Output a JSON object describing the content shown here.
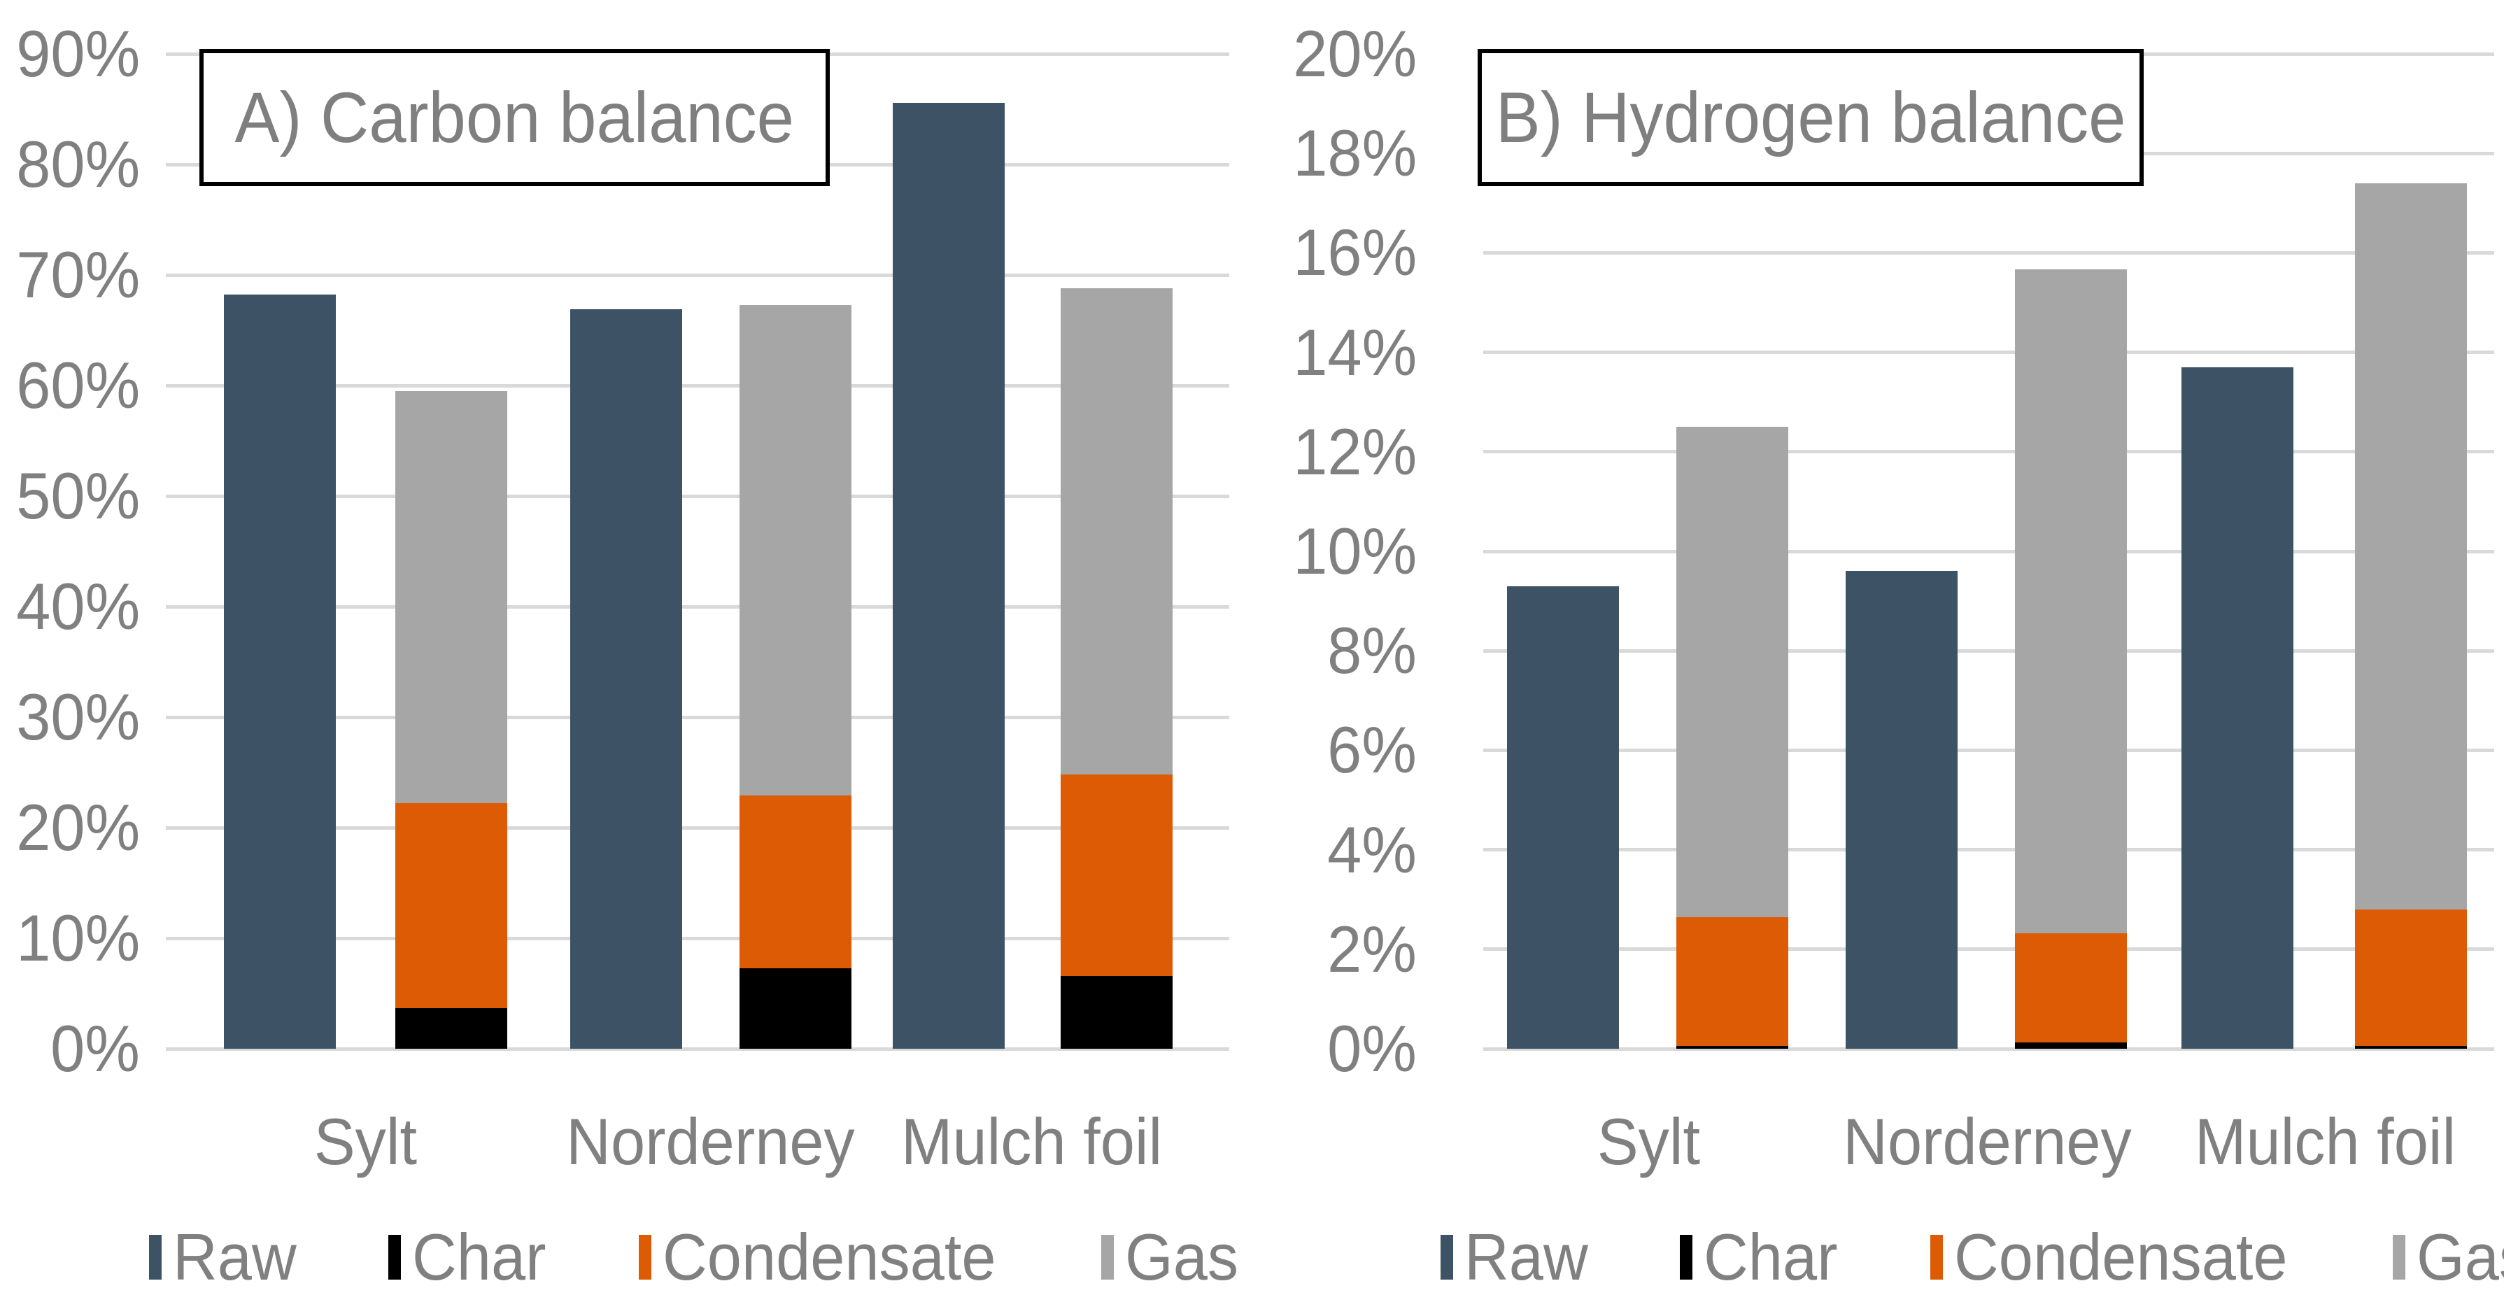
{
  "figure": {
    "background": "#FFFFFF",
    "text_color": "#808080",
    "title_text_color": "#7F7F7F",
    "gridline_color": "#D9D9D9",
    "title_border_color": "#000000"
  },
  "legend": {
    "items": [
      {
        "label": "Raw",
        "color": "#3E5266"
      },
      {
        "label": "Char",
        "color": "#000000"
      },
      {
        "label": "Condensate",
        "color": "#DC5B04"
      },
      {
        "label": "Gas",
        "color": "#A6A6A6"
      }
    ]
  },
  "chart_data": [
    {
      "id": "carbon",
      "type": "bar",
      "title": "A) Carbon balance",
      "categories": [
        "Sylt",
        "Norderney",
        "Mulch foil"
      ],
      "ylim": [
        0,
        90
      ],
      "ytick_step": 10,
      "ytick_labels": [
        "0%",
        "10%",
        "20%",
        "30%",
        "40%",
        "50%",
        "60%",
        "70%",
        "80%",
        "90%"
      ],
      "grid": true,
      "legend_position": "bottom",
      "bar_arrangement": "per category: one solo Raw bar + one stacked bar (Char bottom, Condensate middle, Gas top)",
      "series": [
        {
          "name": "Raw",
          "role": "solo",
          "color": "#3E5266",
          "values": [
            68.2,
            66.9,
            85.6
          ]
        },
        {
          "name": "Char",
          "role": "stacked",
          "color": "#000000",
          "values": [
            3.7,
            7.3,
            6.6
          ]
        },
        {
          "name": "Condensate",
          "role": "stacked",
          "color": "#DC5B04",
          "values": [
            18.5,
            15.6,
            18.2
          ]
        },
        {
          "name": "Gas",
          "role": "stacked",
          "color": "#A6A6A6",
          "values": [
            37.3,
            44.4,
            44.0
          ]
        }
      ],
      "stack_tops_pct": {
        "char": [
          3.7,
          7.3,
          6.6
        ],
        "condensate": [
          22.2,
          22.9,
          24.8
        ],
        "gas": [
          59.5,
          67.3,
          68.8
        ]
      }
    },
    {
      "id": "hydrogen",
      "type": "bar",
      "title": "B) Hydrogen balance",
      "categories": [
        "Sylt",
        "Norderney",
        "Mulch foil"
      ],
      "ylim": [
        0,
        20
      ],
      "ytick_step": 2,
      "ytick_labels": [
        "0%",
        "2%",
        "4%",
        "6%",
        "8%",
        "10%",
        "12%",
        "14%",
        "16%",
        "18%",
        "20%"
      ],
      "grid": true,
      "legend_position": "bottom",
      "bar_arrangement": "per category: one solo Raw bar + one stacked bar (Char bottom, Condensate middle, Gas top)",
      "series": [
        {
          "name": "Raw",
          "role": "solo",
          "color": "#3E5266",
          "values": [
            9.3,
            9.6,
            13.7
          ]
        },
        {
          "name": "Char",
          "role": "stacked",
          "color": "#000000",
          "values": [
            0.05,
            0.12,
            0.05
          ]
        },
        {
          "name": "Condensate",
          "role": "stacked",
          "color": "#DC5B04",
          "values": [
            2.6,
            2.2,
            2.75
          ]
        },
        {
          "name": "Gas",
          "role": "stacked",
          "color": "#A6A6A6",
          "values": [
            9.85,
            13.35,
            14.6
          ]
        }
      ],
      "stack_tops_pct": {
        "char": [
          0.05,
          0.12,
          0.05
        ],
        "condensate": [
          2.65,
          2.32,
          2.8
        ],
        "gas": [
          12.5,
          15.67,
          17.4
        ]
      }
    }
  ]
}
